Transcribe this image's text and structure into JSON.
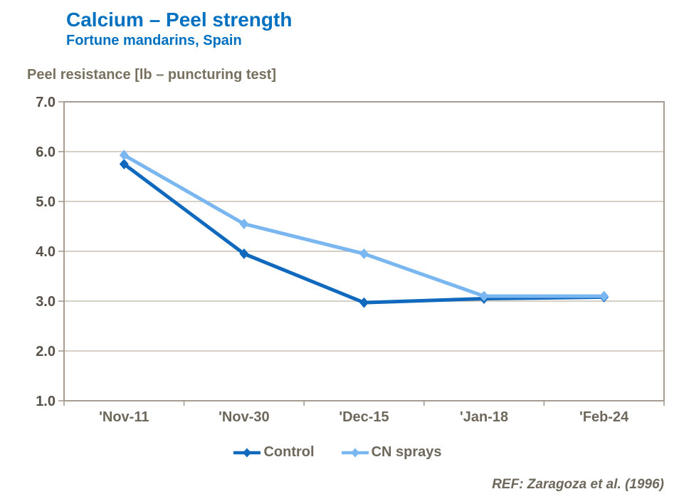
{
  "header": {
    "title": "Calcium – Peel strength",
    "subtitle": "Fortune mandarins, Spain"
  },
  "axis_heading": "Peel resistance [lb – puncturing test]",
  "footer": {
    "ref": "REF: Zaragoza et al. (1996)"
  },
  "legend": {
    "items": [
      {
        "label": "Control",
        "color": "#1169BE"
      },
      {
        "label": "CN sprays",
        "color": "#7AB6F0"
      }
    ]
  },
  "colors": {
    "title_blue": "#0070C0",
    "control_blue": "#1169BE",
    "cn_sprays_blue": "#7AB6F0",
    "gridline": "#C9C1B4",
    "axis": "#A69D90",
    "x_label": "#6E675B",
    "y_label": "#57514A",
    "heading_text": "#79715F"
  },
  "chart_data": {
    "type": "line",
    "title": "Calcium – Peel strength",
    "subtitle": "Fortune mandarins, Spain",
    "ylabel": "Peel resistance [lb – puncturing test]",
    "xlabel": "",
    "categories": [
      "'Nov-11",
      "'Nov-30",
      "'Dec-15",
      "'Jan-18",
      "'Feb-24"
    ],
    "series": [
      {
        "name": "Control",
        "color": "#1169BE",
        "values": [
          5.75,
          3.95,
          2.97,
          3.05,
          3.08
        ]
      },
      {
        "name": "CN sprays",
        "color": "#7AB6F0",
        "values": [
          5.93,
          4.55,
          3.95,
          3.1,
          3.1
        ]
      }
    ],
    "ylim": [
      1.0,
      7.0
    ],
    "ytick_step": 1.0,
    "ytick_labels": [
      "1.0",
      "2.0",
      "3.0",
      "4.0",
      "5.0",
      "6.0",
      "7.0"
    ],
    "grid": "horizontal",
    "legend_position": "bottom",
    "marker": "diamond",
    "annotation": "REF: Zaragoza et al. (1996)"
  }
}
